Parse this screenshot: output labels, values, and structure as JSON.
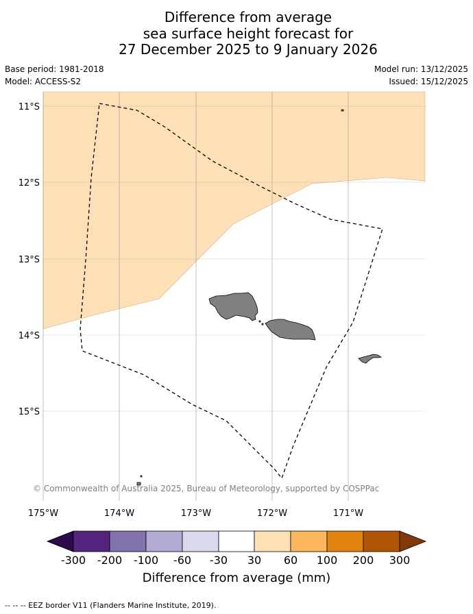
{
  "title": {
    "line1": "Difference from average",
    "line2": "sea surface height forecast for",
    "line3": "27 December 2025 to 9 January 2026"
  },
  "meta": {
    "base_period": "Base period: 1981-2018",
    "model": "Model: ACCESS-S2",
    "model_run": "Model run: 13/12/2025",
    "issued": "Issued: 15/12/2025"
  },
  "map": {
    "lat_labels": [
      "11°S",
      "12°S",
      "13°S",
      "14°S",
      "15°S"
    ],
    "lon_labels": [
      "175°W",
      "174°W",
      "173°W",
      "172°W",
      "171°W"
    ],
    "copyright": "© Commonwealth of Australia 2025, Bureau of Meteorology, supported by COSPPac",
    "anomaly_category": "30 to 60",
    "land_color": "#808080",
    "anomaly_fill_color": "#fde0b5"
  },
  "colorbar": {
    "title": "Difference from average (mm)",
    "tick_labels": [
      "-300",
      "-200",
      "-100",
      "-60",
      "-30",
      "30",
      "60",
      "100",
      "200",
      "300"
    ],
    "colors": [
      "#2d0a4e",
      "#54247f",
      "#8272ad",
      "#b2aad2",
      "#d8d9eb",
      "#ffffff",
      "#fde0b5",
      "#fbb65e",
      "#e0820f",
      "#b25406",
      "#7f3a08"
    ]
  },
  "footnote": "--  --  -- EEZ border V11 (Flanders Marine Institute, 2019)."
}
